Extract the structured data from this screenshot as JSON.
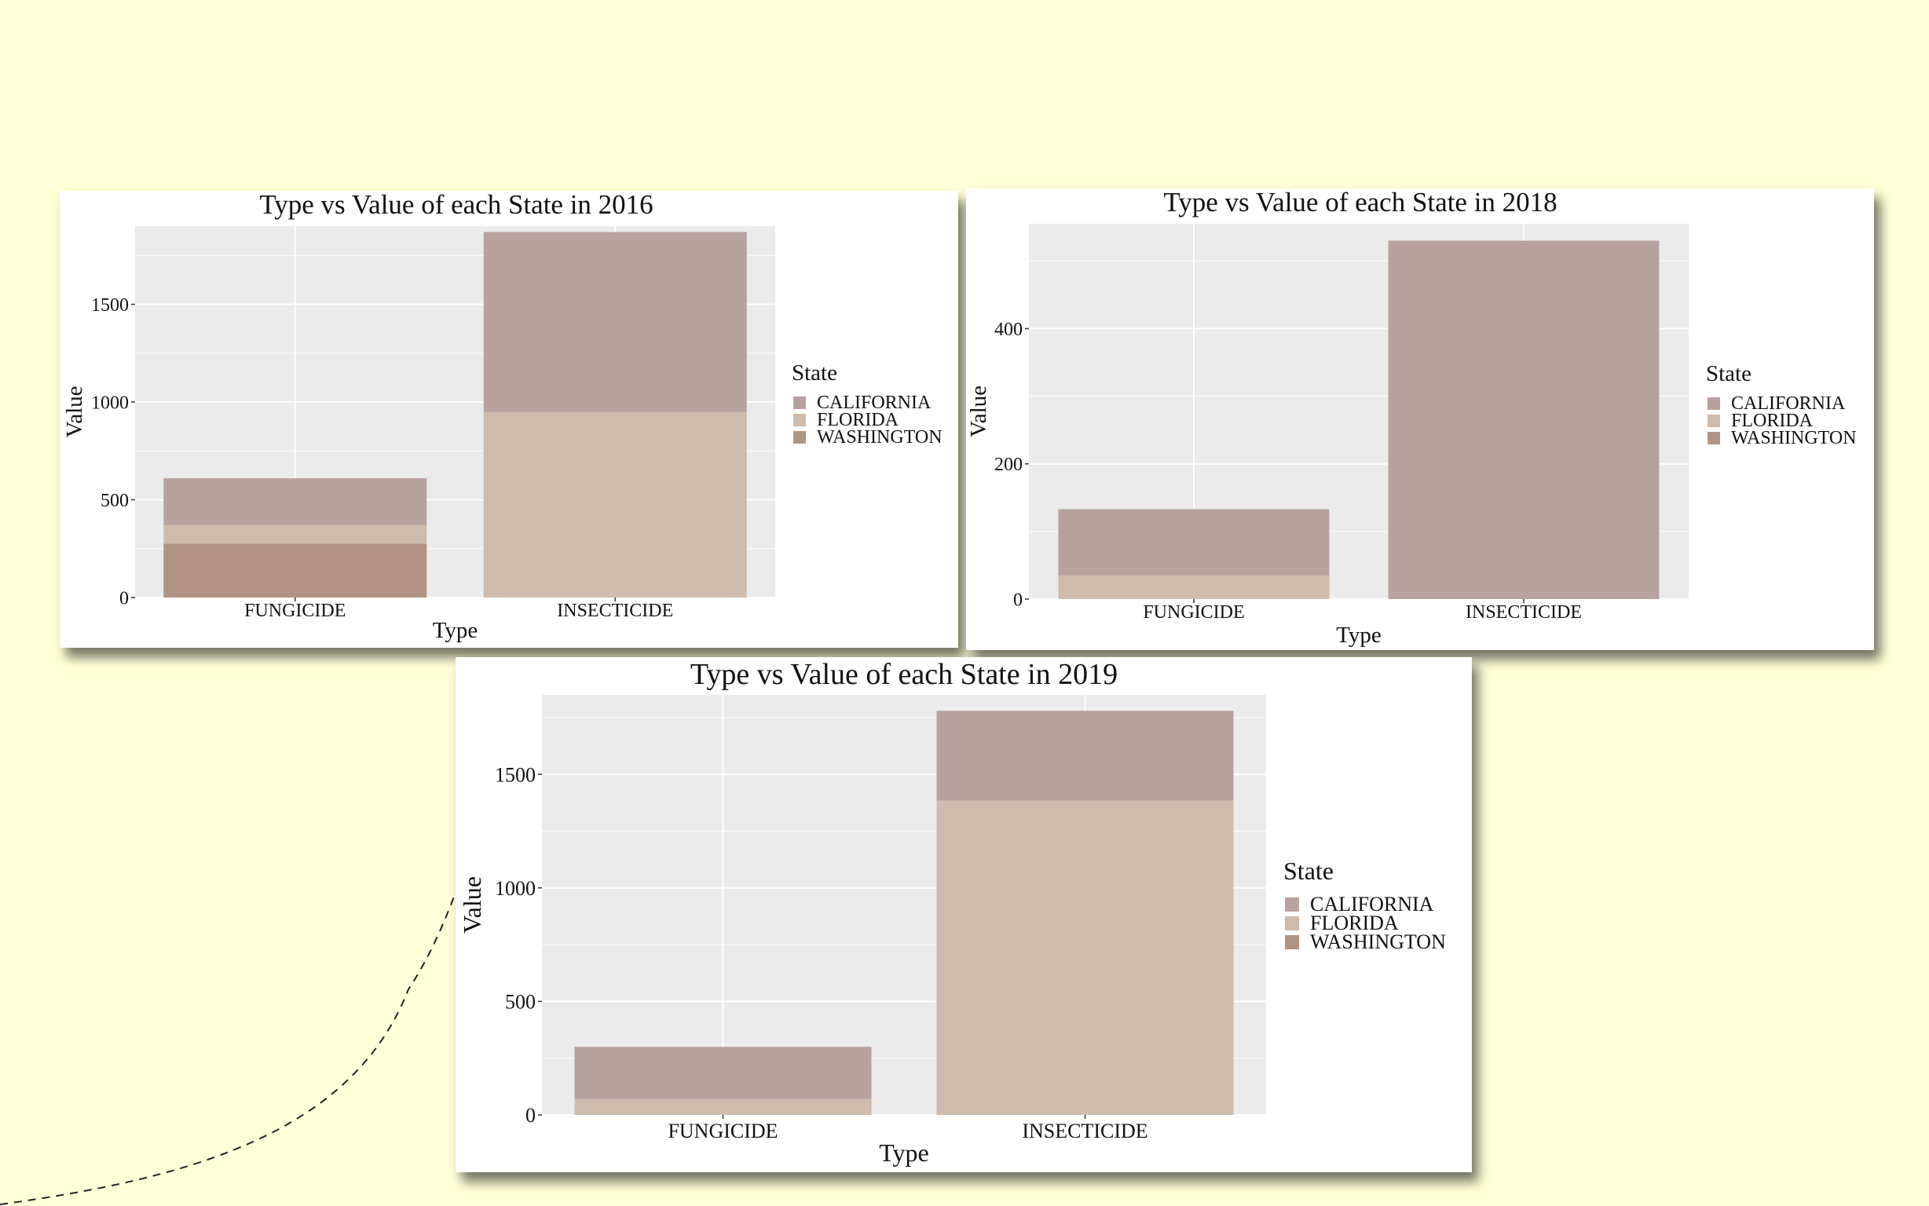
{
  "colors": {
    "page_background": "#ffffd8",
    "panel": "#ebebeb",
    "grid": "#ffffff",
    "CALIFORNIA": "#b8a19f",
    "FLORIDA": "#cfbaab",
    "WASHINGTON": "#b29383"
  },
  "chart_data": [
    {
      "type": "bar",
      "stacked": true,
      "title": "Type vs Value of each State in 2016",
      "xlabel": "Type",
      "ylabel": "Value",
      "categories": [
        "FUNGICIDE",
        "INSECTICIDE"
      ],
      "ylim": [
        0,
        1900
      ],
      "yticks": [
        0,
        500,
        1000,
        1500
      ],
      "legend_title": "State",
      "legend_position": "right",
      "grid": true,
      "series": [
        {
          "name": "CALIFORNIA",
          "values": [
            240,
            920
          ]
        },
        {
          "name": "FLORIDA",
          "values": [
            95,
            950
          ]
        },
        {
          "name": "WASHINGTON",
          "values": [
            275,
            0
          ]
        }
      ]
    },
    {
      "type": "bar",
      "stacked": true,
      "title": "Type vs Value of each State in 2018",
      "xlabel": "Type",
      "ylabel": "Value",
      "categories": [
        "FUNGICIDE",
        "INSECTICIDE"
      ],
      "ylim": [
        0,
        555
      ],
      "yticks": [
        0,
        200,
        400
      ],
      "legend_title": "State",
      "legend_position": "right",
      "grid": true,
      "series": [
        {
          "name": "CALIFORNIA",
          "values": [
            98,
            530
          ]
        },
        {
          "name": "FLORIDA",
          "values": [
            35,
            0
          ]
        },
        {
          "name": "WASHINGTON",
          "values": [
            0,
            0
          ]
        }
      ]
    },
    {
      "type": "bar",
      "stacked": true,
      "title": "Type vs Value of each State in 2019",
      "xlabel": "Type",
      "ylabel": "Value",
      "categories": [
        "FUNGICIDE",
        "INSECTICIDE"
      ],
      "ylim": [
        0,
        1850
      ],
      "yticks": [
        0,
        500,
        1000,
        1500
      ],
      "legend_title": "State",
      "legend_position": "right",
      "grid": true,
      "series": [
        {
          "name": "CALIFORNIA",
          "values": [
            230,
            395
          ]
        },
        {
          "name": "FLORIDA",
          "values": [
            70,
            1385
          ]
        },
        {
          "name": "WASHINGTON",
          "values": [
            0,
            0
          ]
        }
      ]
    }
  ]
}
